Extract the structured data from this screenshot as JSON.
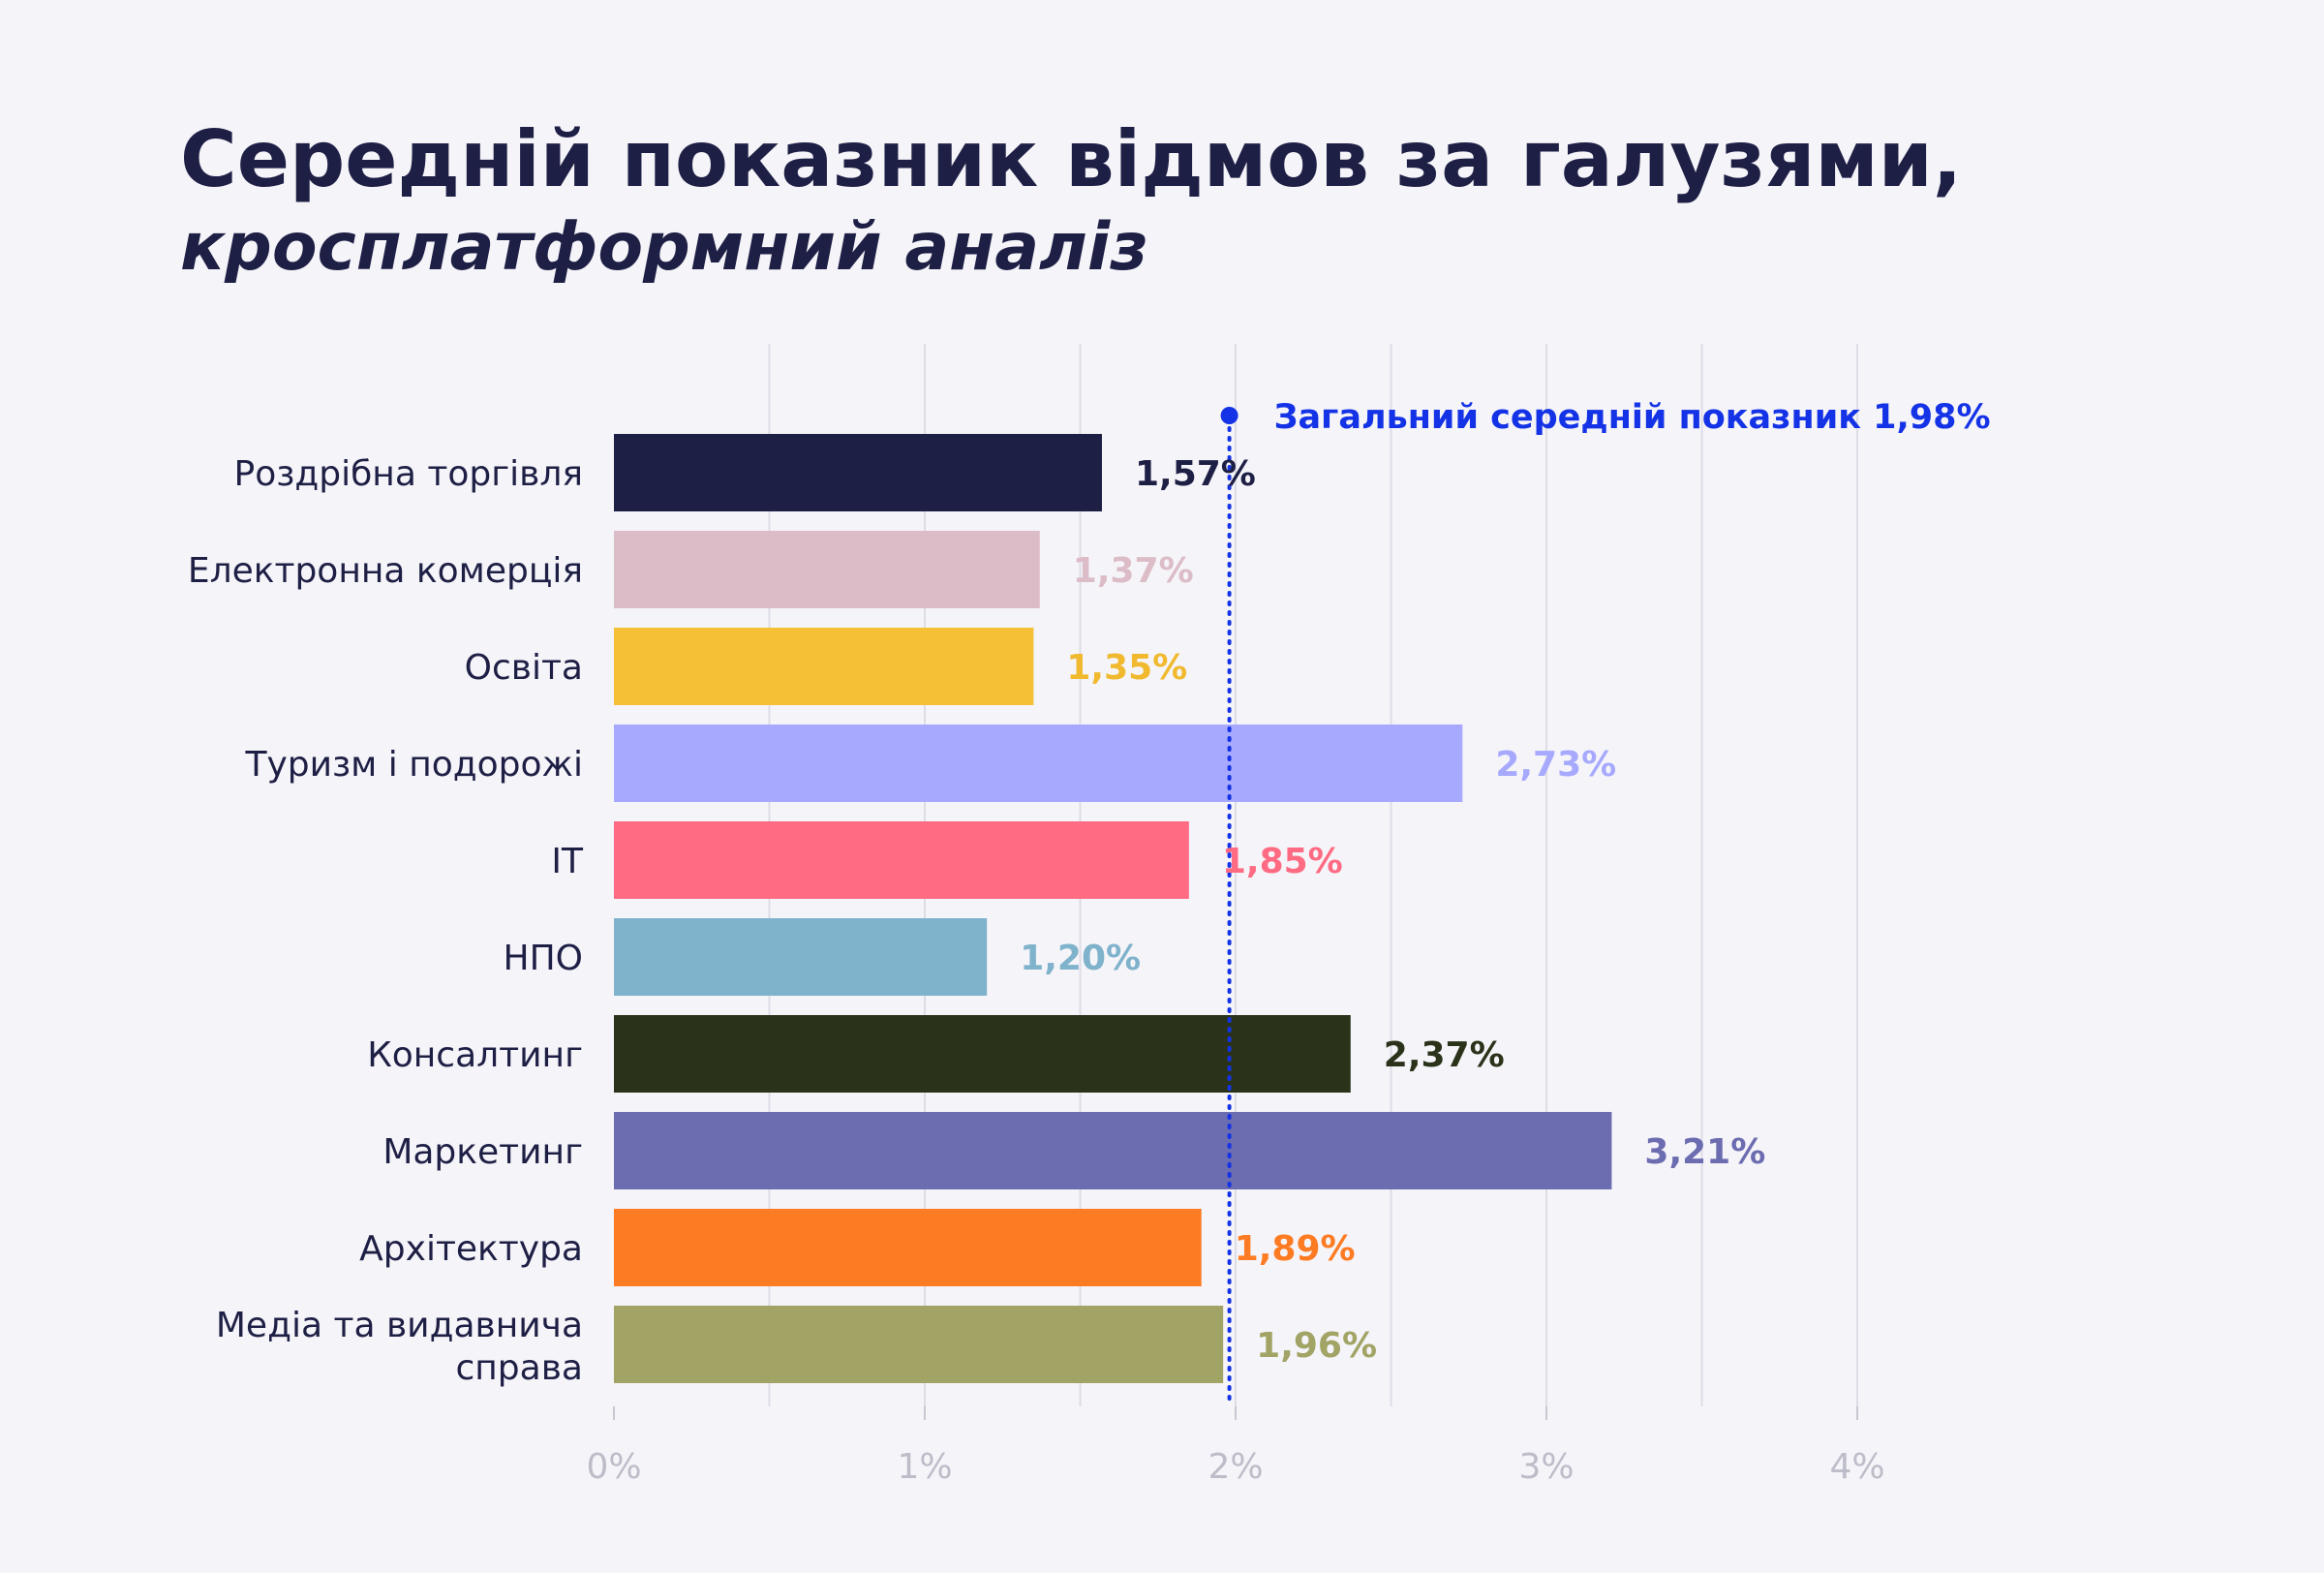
{
  "header": {
    "title": "Середній показник відмов за галузями,",
    "subtitle": "кросплатформний аналіз"
  },
  "chart_data": {
    "type": "bar",
    "orientation": "horizontal",
    "categories": [
      "Роздрібна торгівля",
      "Електронна комерція",
      "Освіта",
      "Туризм і подорожі",
      "IT",
      "НПО",
      "Консалтинг",
      "Маркетинг",
      "Архітектура",
      "Медіа та видавнича справа"
    ],
    "values": [
      1.57,
      1.37,
      1.35,
      2.73,
      1.85,
      1.2,
      2.37,
      3.21,
      1.89,
      1.96
    ],
    "value_labels": [
      "1,57%",
      "1,37%",
      "1,35%",
      "2,73%",
      "1,85%",
      "1,20%",
      "2,37%",
      "3,21%",
      "1,89%",
      "1,96%"
    ],
    "colors": [
      "#1e1f45",
      "#dcbcc6",
      "#f5c036",
      "#a6a9fd",
      "#fe6b83",
      "#7fb2cb",
      "#2a331a",
      "#6c6cb0",
      "#fd7b22",
      "#a1a465"
    ],
    "label_colors": [
      "#1e1f45",
      "#dcbcc6",
      "#f0b92e",
      "#a6a9fd",
      "#fe6b83",
      "#7fb2cb",
      "#2a331a",
      "#6c6cb0",
      "#fd7b22",
      "#a1a465"
    ],
    "xlim": [
      0,
      4.4
    ],
    "xticks": [
      0,
      1,
      2,
      3,
      4
    ],
    "xtick_labels": [
      "0%",
      "1%",
      "2%",
      "3%",
      "4%"
    ],
    "grid": true,
    "reference_line": {
      "value": 1.98,
      "label": "Загальний середній показник 1,98%",
      "color": "#1433e6"
    }
  }
}
